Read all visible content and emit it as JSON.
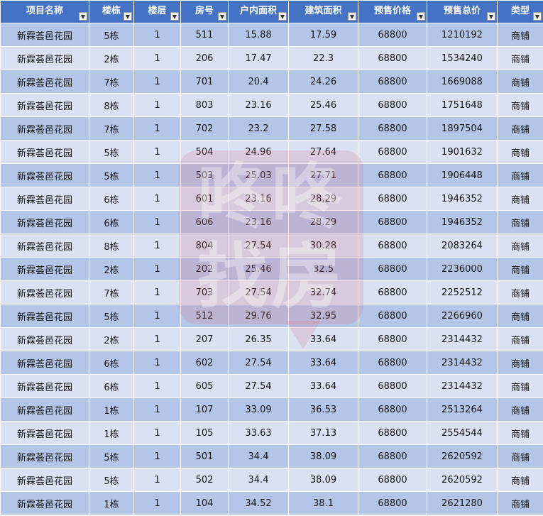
{
  "columns": [
    "项目名称",
    "楼栋",
    "楼层",
    "房号",
    "户内面积",
    "建筑面积",
    "预售价格",
    "预售总价",
    "类型"
  ],
  "filter_icons": [
    "dropdown-arrow",
    "dropdown-arrow",
    "dropdown-arrow",
    "dropdown-arrow",
    "dropdown-arrow",
    "dropdown-arrow",
    "dropdown-arrow",
    "dropdown-arrow",
    "filter-applied"
  ],
  "colors": {
    "header": "#4472c4",
    "row_dark": "#b4c6e7",
    "row_light": "#d9e1f2"
  },
  "watermark": "咚咚找房",
  "rows": [
    [
      "新霖荟邑花园",
      "5栋",
      "1",
      "511",
      "15.88",
      "17.59",
      "68800",
      "1210192",
      "商铺"
    ],
    [
      "新霖荟邑花园",
      "2栋",
      "1",
      "206",
      "17.47",
      "22.3",
      "68800",
      "1534240",
      "商铺"
    ],
    [
      "新霖荟邑花园",
      "7栋",
      "1",
      "701",
      "20.4",
      "24.26",
      "68800",
      "1669088",
      "商铺"
    ],
    [
      "新霖荟邑花园",
      "8栋",
      "1",
      "803",
      "23.16",
      "25.46",
      "68800",
      "1751648",
      "商铺"
    ],
    [
      "新霖荟邑花园",
      "7栋",
      "1",
      "702",
      "23.2",
      "27.58",
      "68800",
      "1897504",
      "商铺"
    ],
    [
      "新霖荟邑花园",
      "5栋",
      "1",
      "504",
      "24.96",
      "27.64",
      "68800",
      "1901632",
      "商铺"
    ],
    [
      "新霖荟邑花园",
      "5栋",
      "1",
      "503",
      "25.03",
      "27.71",
      "68800",
      "1906448",
      "商铺"
    ],
    [
      "新霖荟邑花园",
      "6栋",
      "1",
      "601",
      "23.16",
      "28.29",
      "68800",
      "1946352",
      "商铺"
    ],
    [
      "新霖荟邑花园",
      "6栋",
      "1",
      "606",
      "23.16",
      "28.29",
      "68800",
      "1946352",
      "商铺"
    ],
    [
      "新霖荟邑花园",
      "8栋",
      "1",
      "804",
      "27.54",
      "30.28",
      "68800",
      "2083264",
      "商铺"
    ],
    [
      "新霖荟邑花园",
      "2栋",
      "1",
      "202",
      "25.46",
      "32.5",
      "68800",
      "2236000",
      "商铺"
    ],
    [
      "新霖荟邑花园",
      "7栋",
      "1",
      "703",
      "27.54",
      "32.74",
      "68800",
      "2252512",
      "商铺"
    ],
    [
      "新霖荟邑花园",
      "5栋",
      "1",
      "512",
      "29.76",
      "32.95",
      "68800",
      "2266960",
      "商铺"
    ],
    [
      "新霖荟邑花园",
      "2栋",
      "1",
      "207",
      "26.35",
      "33.64",
      "68800",
      "2314432",
      "商铺"
    ],
    [
      "新霖荟邑花园",
      "6栋",
      "1",
      "602",
      "27.54",
      "33.64",
      "68800",
      "2314432",
      "商铺"
    ],
    [
      "新霖荟邑花园",
      "6栋",
      "1",
      "605",
      "27.54",
      "33.64",
      "68800",
      "2314432",
      "商铺"
    ],
    [
      "新霖荟邑花园",
      "1栋",
      "1",
      "107",
      "33.09",
      "36.53",
      "68800",
      "2513264",
      "商铺"
    ],
    [
      "新霖荟邑花园",
      "1栋",
      "1",
      "105",
      "33.63",
      "37.13",
      "68800",
      "2554544",
      "商铺"
    ],
    [
      "新霖荟邑花园",
      "5栋",
      "1",
      "501",
      "34.4",
      "38.09",
      "68800",
      "2620592",
      "商铺"
    ],
    [
      "新霖荟邑花园",
      "5栋",
      "1",
      "502",
      "34.4",
      "38.09",
      "68800",
      "2620592",
      "商铺"
    ],
    [
      "新霖荟邑花园",
      "1栋",
      "1",
      "104",
      "34.52",
      "38.1",
      "68800",
      "2621280",
      "商铺"
    ]
  ]
}
